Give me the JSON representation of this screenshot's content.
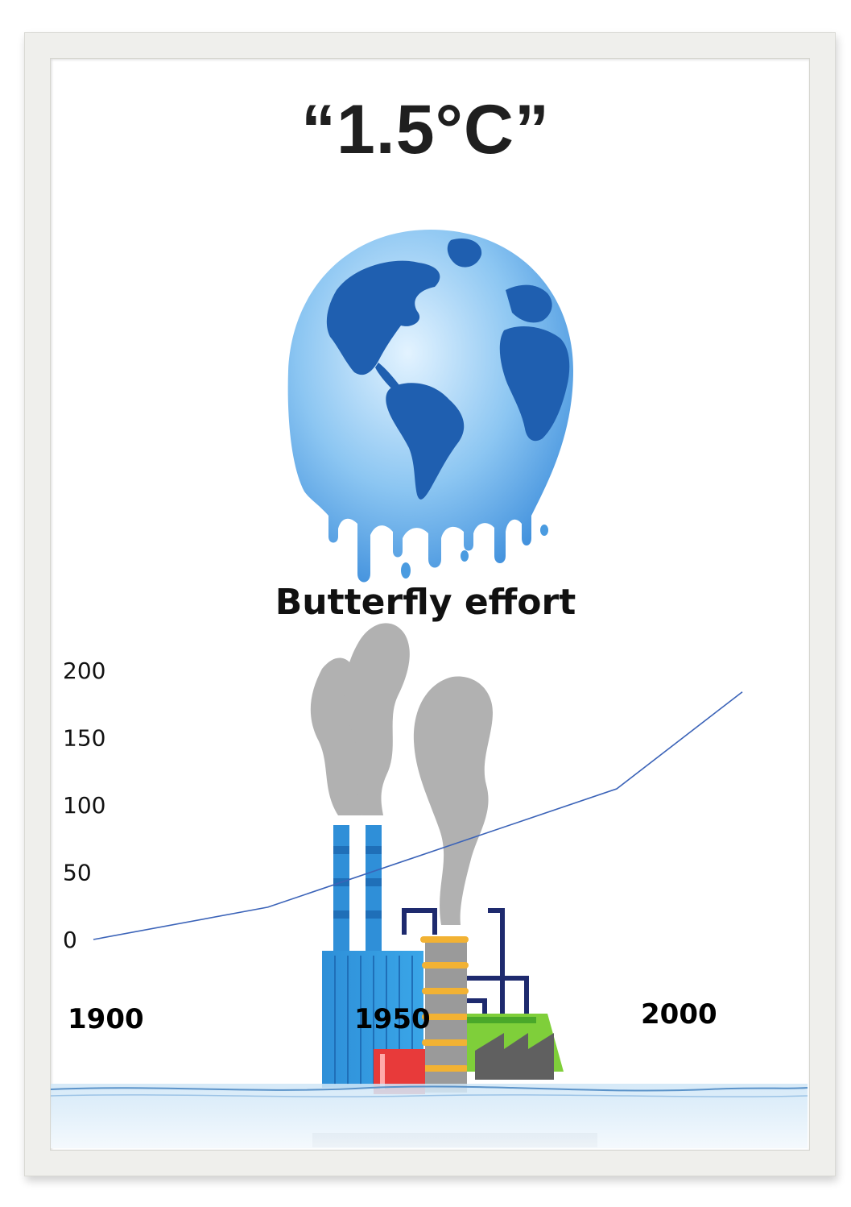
{
  "poster": {
    "title": "“1.5°C”",
    "subtitle": "Butterfly effort"
  },
  "illustration": {
    "globe": "melting-globe-icon",
    "factory": "factory-icon",
    "water": "water-surface"
  },
  "colors": {
    "line": "#3b63b8",
    "ocean": "#6ab0ea",
    "land": "#1f5fb0",
    "smoke": "#a8a8a8"
  },
  "chart_data": {
    "type": "line",
    "title": "",
    "xlabel": "",
    "ylabel": "",
    "ylim": [
      0,
      200
    ],
    "yticks": [
      0,
      50,
      100,
      150,
      200
    ],
    "x_tick_labels": [
      "1900",
      "1950",
      "2000"
    ],
    "grid": false,
    "legend": "none",
    "series": [
      {
        "values": [
          {
            "x": 1900,
            "y": 0
          },
          {
            "x": 1925,
            "y": 24
          },
          {
            "x": 1975,
            "y": 112
          },
          {
            "x": 1993,
            "y": 184
          }
        ]
      }
    ]
  }
}
